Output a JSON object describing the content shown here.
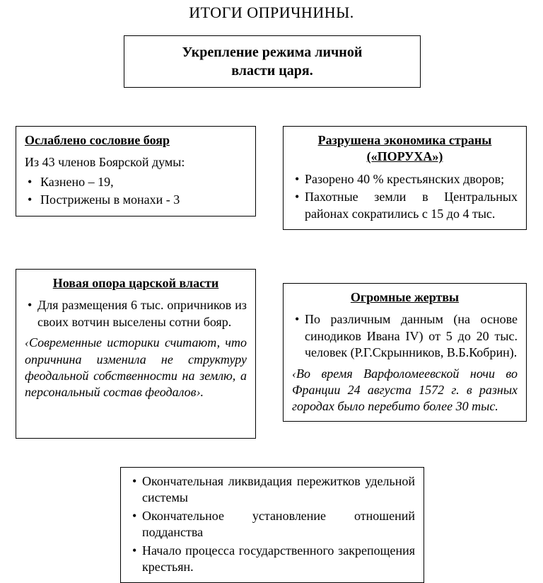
{
  "title": "ИТОГИ ОПРИЧНИНЫ.",
  "top": {
    "line1": "Укрепление режима личной",
    "line2": "власти царя."
  },
  "b1": {
    "header": "Ослаблено сословие бояр",
    "intro": "Из 43 членов Боярской думы:",
    "items": [
      "Казнено – 19,",
      "Пострижены в монахи - 3"
    ]
  },
  "b2": {
    "header": "Разрушена экономика страны («ПОРУХА»)",
    "items": [
      "Разорено 40 % крестьянских дворов;",
      "Пахотные земли в Центральных районах сократились с 15 до 4 тыс."
    ]
  },
  "b3": {
    "header": "Новая опора царской власти",
    "items": [
      "Для размещения 6 тыс. опричников из своих вотчин выселены сотни бояр."
    ],
    "note": "‹Современные историки считают, что опричнина изменила не структуру феодальной собственности на землю, а персональный состав феодалов›."
  },
  "b4": {
    "header": "Огромные жертвы",
    "items": [
      "По различным данным (на основе синодиков Ивана IV) от 5 до 20 тыс. человек (Р.Г.Скрынников, В.Б.Кобрин)."
    ],
    "note": "‹Во время Варфоломеевской ночи во Франции 24 августа 1572 г. в разных городах было перебито более 30 тыс."
  },
  "b5": {
    "items": [
      "Окончательная ликвидация пережитков удельной системы",
      "Окончательное установление отношений подданства",
      "Начало процесса государственного закрепощения крестьян."
    ]
  }
}
